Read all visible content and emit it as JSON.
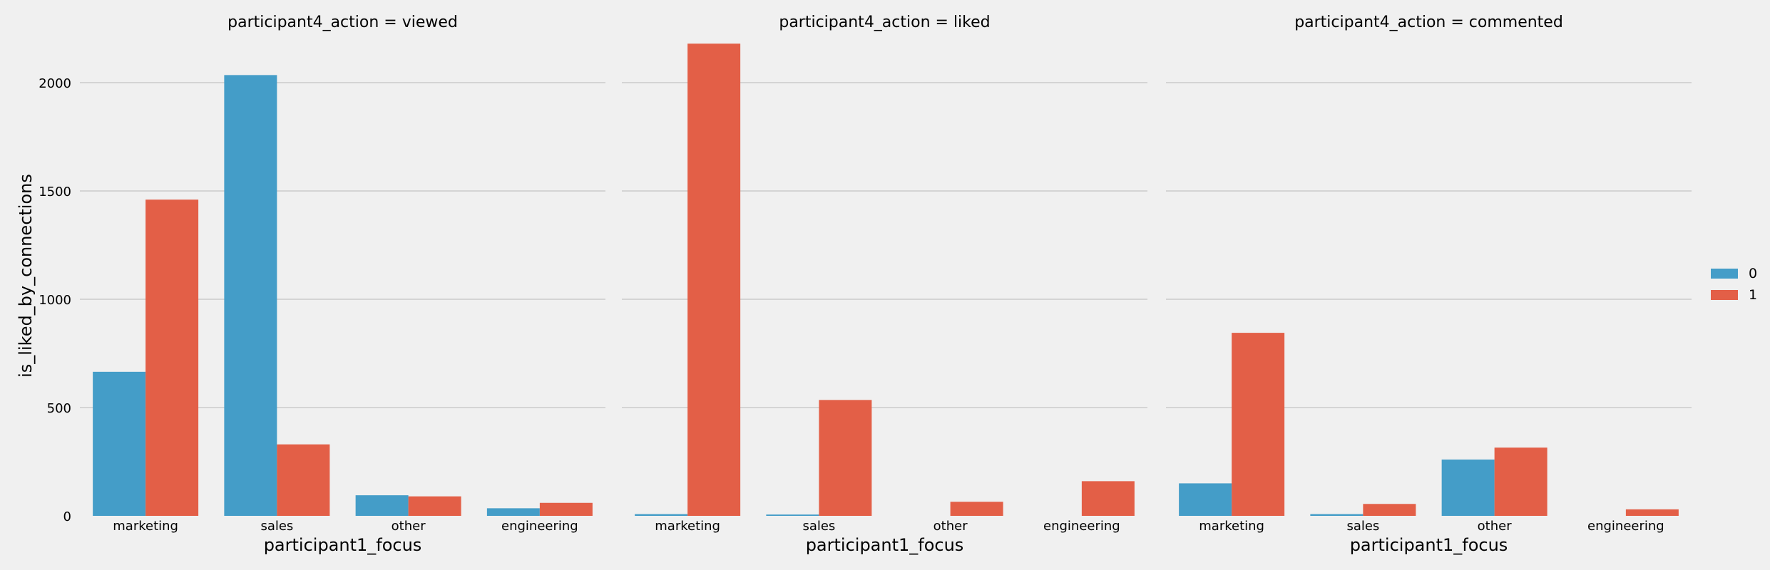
{
  "colors": {
    "series0": "#449dc8",
    "series1": "#e35f47",
    "background": "#f0f0f0",
    "grid": "#cbcbcb"
  },
  "chart_data": {
    "type": "bar",
    "ylabel": "is_liked_by_connections",
    "xlabel": "participant1_focus",
    "yticks": [
      0,
      500,
      1000,
      1500,
      2000
    ],
    "ylim": [
      0,
      2250
    ],
    "categories": [
      "marketing",
      "sales",
      "other",
      "engineering"
    ],
    "legend": {
      "placement": "right",
      "entries": [
        "0",
        "1"
      ]
    },
    "grid": "horizontal",
    "panels": [
      {
        "title": "participant4_action = viewed",
        "series": [
          {
            "name": "0",
            "values": [
              665,
              2035,
              95,
              35
            ]
          },
          {
            "name": "1",
            "values": [
              1460,
              330,
              90,
              60
            ]
          }
        ]
      },
      {
        "title": "participant4_action = liked",
        "series": [
          {
            "name": "0",
            "values": [
              8,
              6,
              0,
              0
            ]
          },
          {
            "name": "1",
            "values": [
              2180,
              535,
              65,
              160
            ]
          }
        ]
      },
      {
        "title": "participant4_action = commented",
        "series": [
          {
            "name": "0",
            "values": [
              150,
              8,
              260,
              0
            ]
          },
          {
            "name": "1",
            "values": [
              845,
              55,
              315,
              30
            ]
          }
        ]
      }
    ]
  }
}
